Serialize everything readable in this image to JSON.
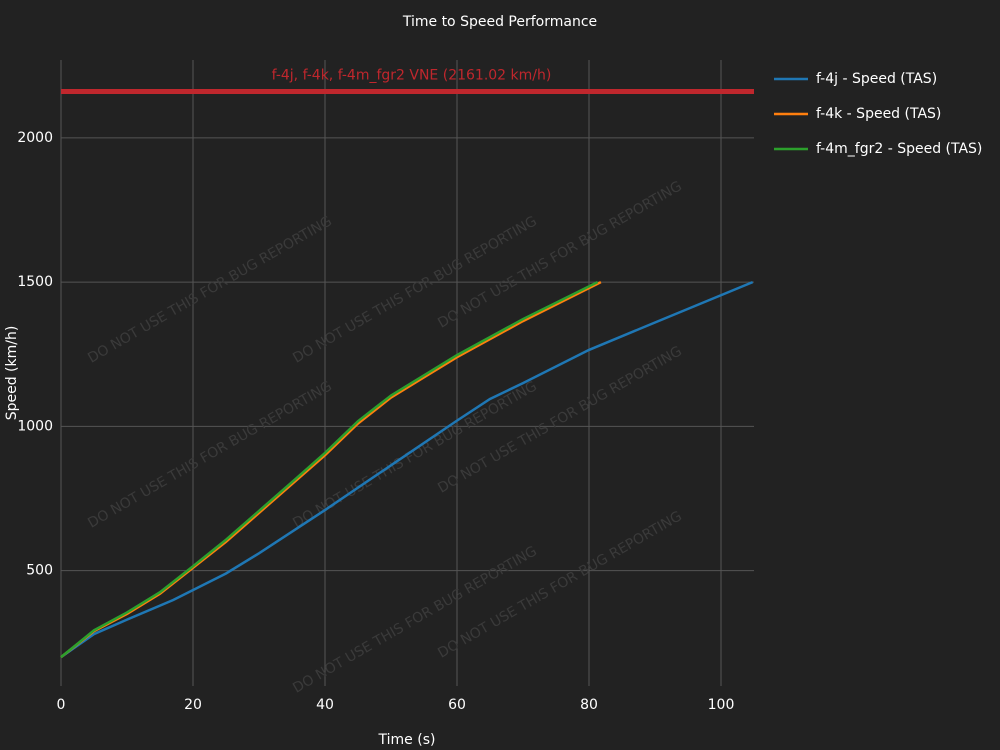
{
  "chart_data": {
    "type": "line",
    "title": "Time to Speed Performance",
    "x_label": "Time (s)",
    "y_label": "Speed (km/h)",
    "watermark": "DO NOT USE THIS FOR BUG REPORTING",
    "xlim": [
      0,
      105
    ],
    "xticks": [
      0,
      20,
      40,
      60,
      80,
      100
    ],
    "ylim": [
      100,
      2270
    ],
    "yticks": [
      500,
      1000,
      1500,
      2000
    ],
    "grid": true,
    "legend": "right",
    "hlines": [
      {
        "label": "f-4j, f-4k, f-4m_fgr2 VNE (2161.02 km/h)",
        "value": 2161.02,
        "color": "#c0272d"
      }
    ],
    "series": [
      {
        "name": "f-4j - Speed (TAS)",
        "color": "#1f77b4",
        "x": [
          0,
          5,
          10,
          17,
          25,
          30,
          40,
          50,
          60,
          65,
          70,
          80,
          90,
          104.8
        ],
        "values": [
          200,
          280,
          330,
          398,
          490,
          560,
          710,
          865,
          1020,
          1095,
          1150,
          1265,
          1360,
          1500
        ]
      },
      {
        "name": "f-4k - Speed (TAS)",
        "color": "#ff7f0e",
        "x": [
          0,
          5,
          10,
          15,
          20,
          25,
          30,
          35,
          40,
          45,
          50,
          55,
          60,
          70,
          81.8
        ],
        "values": [
          200,
          290,
          350,
          420,
          510,
          600,
          700,
          800,
          900,
          1010,
          1100,
          1170,
          1240,
          1365,
          1500
        ]
      },
      {
        "name": "f-4m_fgr2 - Speed (TAS)",
        "color": "#2ca02c",
        "x": [
          0,
          5,
          10,
          15,
          20,
          25,
          30,
          35,
          40,
          45,
          50,
          55,
          60,
          70,
          81.3
        ],
        "values": [
          200,
          293,
          355,
          425,
          515,
          607,
          707,
          807,
          908,
          1018,
          1107,
          1177,
          1247,
          1372,
          1500
        ]
      }
    ]
  }
}
